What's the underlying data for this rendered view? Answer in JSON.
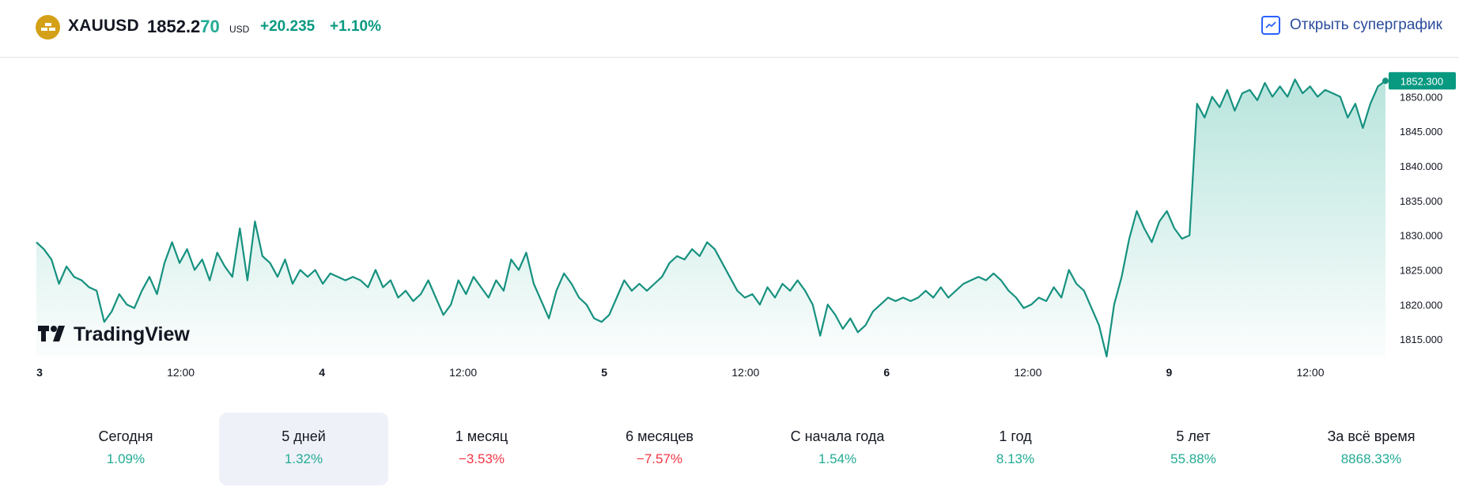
{
  "header": {
    "symbol": "XAUUSD",
    "price_main": "1852.2",
    "price_last": "70",
    "currency": "USD",
    "change": "+20.235",
    "change_pct": "+1.10%",
    "open_supergraph": "Открыть суперграфик"
  },
  "watermark": "TradingView",
  "colors": {
    "line": "#16917f",
    "fill": "#22ab94",
    "positive": "#22ab94",
    "negative": "#f23645",
    "logo": "#d4a017",
    "link": "#2962ff"
  },
  "chart_data": {
    "type": "area",
    "symbol": "XAUUSD",
    "x_ticks": [
      "3",
      "12:00",
      "4",
      "12:00",
      "5",
      "12:00",
      "6",
      "12:00",
      "9",
      "12:00"
    ],
    "y_ticks": [
      "1815.000",
      "1820.000",
      "1825.000",
      "1830.000",
      "1835.000",
      "1840.000",
      "1845.000",
      "1850.000"
    ],
    "ylim": [
      1812.5,
      1854.5
    ],
    "last_label": "1852.300",
    "grid": false,
    "series": [
      {
        "values": [
          1829.0,
          1828.0,
          1826.5,
          1823.0,
          1825.5,
          1824.0,
          1823.5,
          1822.5,
          1822.0,
          1817.5,
          1819.0,
          1821.5,
          1820.0,
          1819.5,
          1822.0,
          1824.0,
          1821.5,
          1826.0,
          1829.0,
          1826.0,
          1828.0,
          1825.0,
          1826.5,
          1823.5,
          1827.5,
          1825.5,
          1824.0,
          1831.0,
          1823.5,
          1832.0,
          1827.0,
          1826.0,
          1824.0,
          1826.5,
          1823.0,
          1825.0,
          1824.0,
          1825.0,
          1823.0,
          1824.5,
          1824.0,
          1823.5,
          1824.0,
          1823.5,
          1822.5,
          1825.0,
          1822.5,
          1823.5,
          1821.0,
          1822.0,
          1820.5,
          1821.5,
          1823.5,
          1821.0,
          1818.5,
          1820.0,
          1823.5,
          1821.5,
          1824.0,
          1822.5,
          1821.0,
          1823.5,
          1822.0,
          1826.5,
          1825.0,
          1827.5,
          1823.0,
          1820.5,
          1818.0,
          1822.0,
          1824.5,
          1823.0,
          1821.0,
          1820.0,
          1818.0,
          1817.5,
          1818.5,
          1821.0,
          1823.5,
          1822.0,
          1823.0,
          1822.0,
          1823.0,
          1824.0,
          1826.0,
          1827.0,
          1826.5,
          1828.0,
          1827.0,
          1829.0,
          1828.0,
          1826.0,
          1824.0,
          1822.0,
          1821.0,
          1821.5,
          1820.0,
          1822.5,
          1821.0,
          1823.0,
          1822.0,
          1823.5,
          1822.0,
          1820.0,
          1815.5,
          1820.0,
          1818.5,
          1816.5,
          1818.0,
          1816.0,
          1817.0,
          1819.0,
          1820.0,
          1821.0,
          1820.5,
          1821.0,
          1820.5,
          1821.0,
          1822.0,
          1821.0,
          1822.5,
          1821.0,
          1822.0,
          1823.0,
          1823.5,
          1824.0,
          1823.5,
          1824.5,
          1823.5,
          1822.0,
          1821.0,
          1819.5,
          1820.0,
          1821.0,
          1820.5,
          1822.5,
          1821.0,
          1825.0,
          1823.0,
          1822.0,
          1819.5,
          1817.0,
          1812.5,
          1820.0,
          1824.0,
          1829.5,
          1833.5,
          1831.0,
          1829.0,
          1832.0,
          1833.5,
          1831.0,
          1829.5,
          1830.0,
          1849.0,
          1847.0,
          1850.0,
          1848.5,
          1851.0,
          1848.0,
          1850.5,
          1851.0,
          1849.5,
          1852.0,
          1850.0,
          1851.5,
          1850.0,
          1852.5,
          1850.5,
          1851.5,
          1850.0,
          1851.0,
          1850.5,
          1850.0,
          1847.0,
          1849.0,
          1845.5,
          1849.0,
          1851.5,
          1852.3
        ]
      }
    ]
  },
  "periods": [
    {
      "label": "Сегодня",
      "value": "1.09%",
      "dir": "pos",
      "active": false
    },
    {
      "label": "5 дней",
      "value": "1.32%",
      "dir": "pos",
      "active": true
    },
    {
      "label": "1 месяц",
      "value": "−3.53%",
      "dir": "neg",
      "active": false
    },
    {
      "label": "6 месяцев",
      "value": "−7.57%",
      "dir": "neg",
      "active": false
    },
    {
      "label": "С начала года",
      "value": "1.54%",
      "dir": "pos",
      "active": false
    },
    {
      "label": "1 год",
      "value": "8.13%",
      "dir": "pos",
      "active": false
    },
    {
      "label": "5 лет",
      "value": "55.88%",
      "dir": "pos",
      "active": false
    },
    {
      "label": "За всё время",
      "value": "8868.33%",
      "dir": "pos",
      "active": false
    }
  ]
}
